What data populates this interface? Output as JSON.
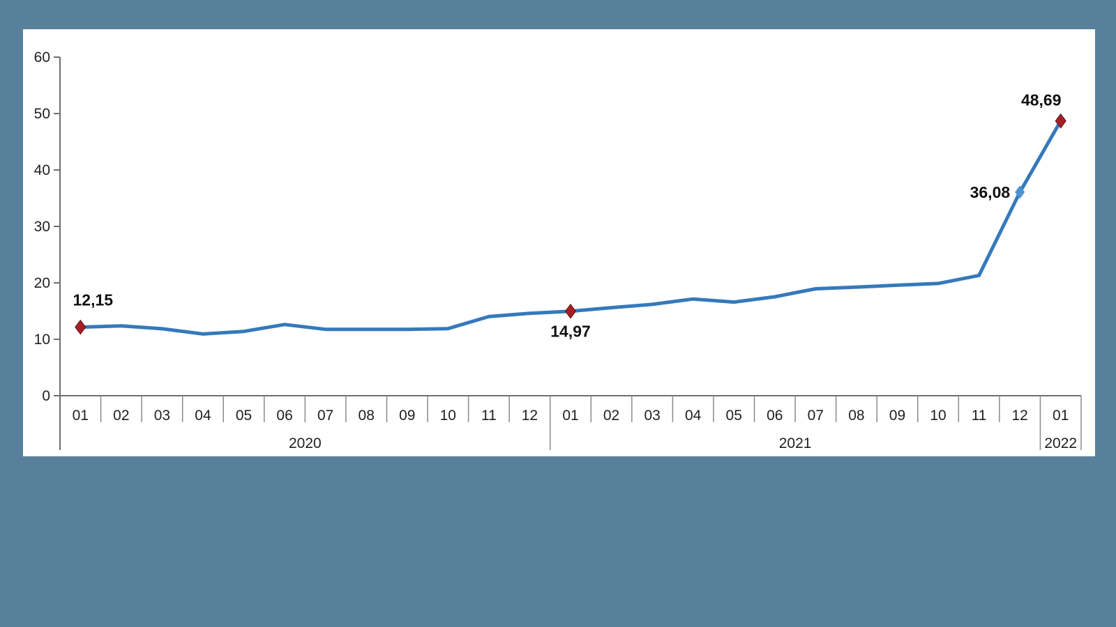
{
  "page": {
    "background_color": "#58809B",
    "panel_color": "#FFFFFF"
  },
  "chart_data": {
    "type": "line",
    "title": "",
    "xlabel": "",
    "ylabel": "",
    "grid": false,
    "legend": "none",
    "y_axis": {
      "min": 0,
      "max": 60,
      "tick_interval": 10,
      "tick_labels": [
        "0",
        "10",
        "20",
        "30",
        "40",
        "50",
        "60"
      ]
    },
    "x_axis": {
      "groups": [
        {
          "year": "2020",
          "months": [
            "01",
            "02",
            "03",
            "04",
            "05",
            "06",
            "07",
            "08",
            "09",
            "10",
            "11",
            "12"
          ]
        },
        {
          "year": "2021",
          "months": [
            "01",
            "02",
            "03",
            "04",
            "05",
            "06",
            "07",
            "08",
            "09",
            "10",
            "11",
            "12"
          ]
        },
        {
          "year": "2022",
          "months": [
            "01"
          ]
        }
      ]
    },
    "series": [
      {
        "name": "annual-rate-line",
        "color": "#3579BC",
        "values": [
          12.15,
          12.37,
          11.86,
          10.94,
          11.39,
          12.62,
          11.76,
          11.77,
          11.75,
          11.89,
          14.03,
          14.6,
          14.97,
          15.61,
          16.19,
          17.14,
          16.59,
          17.53,
          18.95,
          19.25,
          19.58,
          19.89,
          21.31,
          36.08,
          48.69
        ]
      }
    ],
    "point_labels": [
      {
        "index": 0,
        "text": "12,15",
        "position": "above",
        "marker": "red"
      },
      {
        "index": 12,
        "text": "14,97",
        "position": "below",
        "marker": "red"
      },
      {
        "index": 23,
        "text": "36,08",
        "position": "left",
        "marker": "blue"
      },
      {
        "index": 24,
        "text": "48,69",
        "position": "above",
        "marker": "red"
      }
    ],
    "marker_colors": {
      "red": {
        "fill": "#A51F24",
        "stroke": "#5E1416"
      },
      "blue": {
        "fill": "#4E93CE",
        "stroke": "none"
      }
    }
  }
}
